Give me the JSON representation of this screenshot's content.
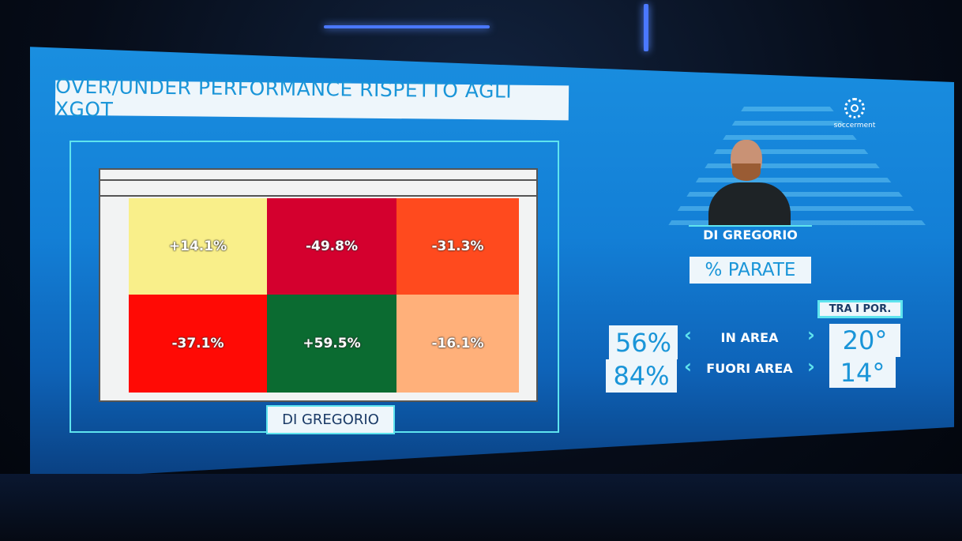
{
  "title": "OVER/UNDER PERFORMANCE RISPETTO AGLI XGOT",
  "chart_data": {
    "type": "heatmap",
    "title": "OVER/UNDER PERFORMANCE RISPETTO AGLI XGOT",
    "xlabel": "DI GREGORIO",
    "rows": 2,
    "cols": 3,
    "values": [
      [
        14.1,
        -49.8,
        -31.3
      ],
      [
        -37.1,
        59.5,
        -16.1
      ]
    ],
    "labels": [
      [
        "+14.1%",
        "-49.8%",
        "-31.3%"
      ],
      [
        "-37.1%",
        "+59.5%",
        "-16.1%"
      ]
    ],
    "colors": [
      [
        "#f9ef8a",
        "#d4002e",
        "#ff4a1e"
      ],
      [
        "#ff0a05",
        "#0b6b31",
        "#ffb07a"
      ]
    ]
  },
  "goal_label": "DI GREGORIO",
  "logo_text": "soccerment",
  "player": {
    "name": "DI GREGORIO"
  },
  "metric_title": "% PARATE",
  "rank_header": "TRA I POR.",
  "rows": [
    {
      "value": "56%",
      "label": "IN AREA",
      "rank": "20°"
    },
    {
      "value": "84%",
      "label": "FUORI AREA",
      "rank": "14°"
    }
  ],
  "icons": {
    "left": "‹",
    "right": "›"
  }
}
